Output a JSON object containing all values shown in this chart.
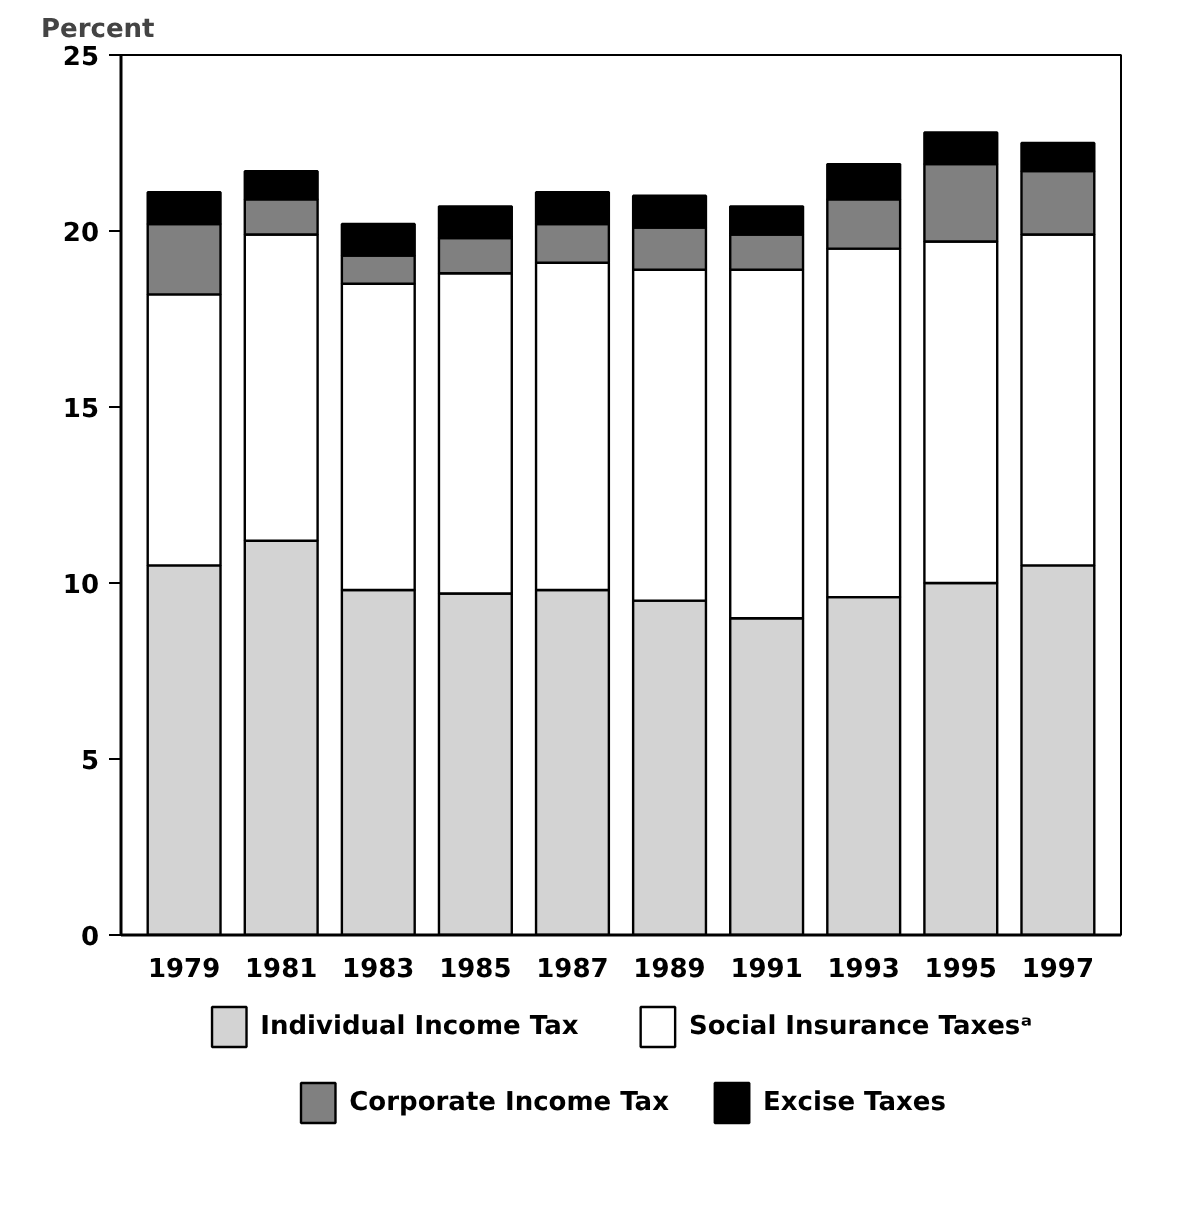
{
  "chart_data": {
    "type": "bar",
    "stacked": true,
    "ylabel": "Percent",
    "categories": [
      "1979",
      "1981",
      "1983",
      "1985",
      "1987",
      "1989",
      "1991",
      "1993",
      "1995",
      "1997"
    ],
    "series": [
      {
        "name": "Individual Income Tax",
        "color": "#d3d3d3",
        "values": [
          10.5,
          11.2,
          9.8,
          9.7,
          9.8,
          9.5,
          9.0,
          9.6,
          10.0,
          10.5
        ]
      },
      {
        "name": "Social Insurance Taxesᵃ",
        "color": "#ffffff",
        "values": [
          7.7,
          8.7,
          8.7,
          9.1,
          9.3,
          9.4,
          9.9,
          9.9,
          9.7,
          9.4
        ]
      },
      {
        "name": "Corporate Income Tax",
        "color": "#808080",
        "values": [
          2.0,
          1.0,
          0.8,
          1.0,
          1.1,
          1.2,
          1.0,
          1.4,
          2.2,
          1.8
        ]
      },
      {
        "name": "Excise Taxes",
        "color": "#000000",
        "values": [
          0.9,
          0.8,
          0.9,
          0.9,
          0.9,
          0.9,
          0.8,
          1.0,
          0.9,
          0.8
        ]
      }
    ],
    "ylim": [
      0,
      25
    ],
    "yticks": [
      0,
      5,
      10,
      15,
      20,
      25
    ],
    "grid": false,
    "legend": "bottom"
  }
}
